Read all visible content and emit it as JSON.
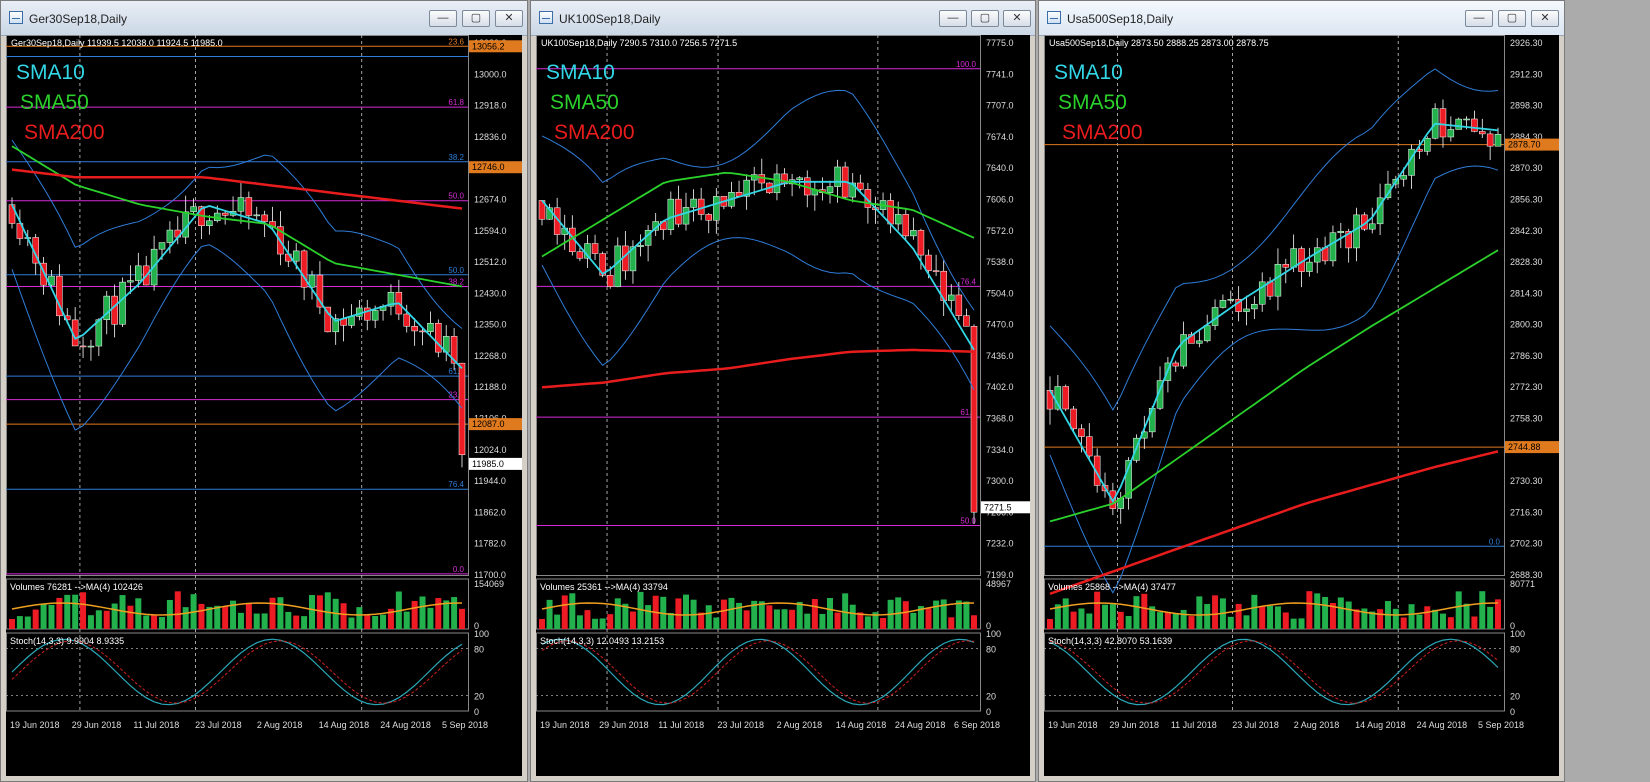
{
  "windows": [
    {
      "title": "Ger30Sep18,Daily",
      "info": "Ger30Sep18,Daily  11939.5 12038.0 11924.5 11985.0",
      "sma_labels": [
        "SMA10",
        "SMA50",
        "SMA200"
      ],
      "price_axis": [
        "13080.0",
        "13000.0",
        "12918.0",
        "12836.0",
        "12754.0",
        "12674.0",
        "12594.0",
        "12512.0",
        "12430.0",
        "12350.0",
        "12268.0",
        "12188.0",
        "12106.0",
        "12024.0",
        "11944.0",
        "11862.0",
        "11782.0",
        "11700.0"
      ],
      "tags": [
        {
          "text": "13056.2",
          "price": 13056.2,
          "color": "#e07a1f"
        },
        {
          "text": "12746.0",
          "price": 12746.0,
          "color": "#e07a1f"
        },
        {
          "text": "12087.0",
          "price": 12087.0,
          "color": "#e07a1f"
        },
        {
          "text": "11985.0",
          "price": 11985.0,
          "color": "#ffffff"
        }
      ],
      "fib_labels": [
        "23.6",
        "61.8",
        "38.2",
        "50.0",
        "50.0",
        "38.2",
        "61.8",
        "23.6",
        "76.4",
        "0.0"
      ],
      "volume_label": "Volumes 76281 -->MA(4) 102426",
      "volume_axis": [
        "154069",
        "0"
      ],
      "stoch_label": "Stoch(14,3,3) 9.9904 8.9335",
      "stoch_axis": [
        "100",
        "80",
        "20",
        "0"
      ],
      "dates": [
        "19 Jun 2018",
        "29 Jun 2018",
        "11 Jul 2018",
        "23 Jul 2018",
        "2 Aug 2018",
        "14 Aug 2018",
        "24 Aug 2018",
        "5 Sep 2018"
      ]
    },
    {
      "title": "UK100Sep18,Daily",
      "info": "UK100Sep18,Daily  7290.5 7310.0 7256.5 7271.5",
      "sma_labels": [
        "SMA10",
        "SMA50",
        "SMA200"
      ],
      "price_axis": [
        "7775.0",
        "7741.0",
        "7707.0",
        "7674.0",
        "7640.0",
        "7606.0",
        "7572.0",
        "7538.0",
        "7504.0",
        "7470.0",
        "7436.0",
        "7402.0",
        "7368.0",
        "7334.0",
        "7300.0",
        "7266.0",
        "7232.0",
        "7199.0"
      ],
      "tags": [
        {
          "text": "7271.5",
          "price": 7271.5,
          "color": "#ffffff"
        }
      ],
      "fib_labels": [
        "100.0",
        "76.4",
        "61.8",
        "50.0"
      ],
      "volume_label": "Volumes 25361 -->MA(4) 33794",
      "volume_axis": [
        "48967",
        "0"
      ],
      "stoch_label": "Stoch(14,3,3) 12.0493 13.2153",
      "stoch_axis": [
        "100",
        "80",
        "20",
        "0"
      ],
      "dates": [
        "19 Jun 2018",
        "29 Jun 2018",
        "11 Jul 2018",
        "23 Jul 2018",
        "2 Aug 2018",
        "14 Aug 2018",
        "24 Aug 2018",
        "6 Sep 2018"
      ]
    },
    {
      "title": "Usa500Sep18,Daily",
      "info": "Usa500Sep18,Daily  2873.50 2888.25 2873.00 2878.75",
      "sma_labels": [
        "SMA10",
        "SMA50",
        "SMA200"
      ],
      "price_axis": [
        "2926.30",
        "2912.30",
        "2898.30",
        "2884.30",
        "2870.30",
        "2856.30",
        "2842.30",
        "2828.30",
        "2814.30",
        "2800.30",
        "2786.30",
        "2772.30",
        "2758.30",
        "2744.30",
        "2730.30",
        "2716.30",
        "2702.30",
        "2688.30"
      ],
      "tags": [
        {
          "text": "2878.70",
          "price": 2878.7,
          "color": "#e07a1f"
        },
        {
          "text": "2744.88",
          "price": 2744.88,
          "color": "#e07a1f"
        }
      ],
      "fib_labels": [
        "0.0"
      ],
      "volume_label": "Volumes 25868 -->MA(4) 37477",
      "volume_axis": [
        "80771",
        "0"
      ],
      "stoch_label": "Stoch(14,3,3) 42.8070 53.1639",
      "stoch_axis": [
        "100",
        "80",
        "20",
        "0"
      ],
      "dates": [
        "19 Jun 2018",
        "29 Jun 2018",
        "11 Jul 2018",
        "23 Jul 2018",
        "2 Aug 2018",
        "14 Aug 2018",
        "24 Aug 2018",
        "5 Sep 2018"
      ]
    }
  ],
  "window_buttons": {
    "minimize": "—",
    "maximize": "▢",
    "close": "✕"
  },
  "colors": {
    "bull": "#22b14c",
    "bear": "#ed1c24",
    "sma10": "#33d6e6",
    "sma50": "#2bd12b",
    "sma200": "#e81c1c",
    "bollinger": "#2f7dd9",
    "fib": "#d62bd6",
    "level_orange": "#e07a1f",
    "vol_ma": "#f0a020",
    "stoch_main": "#2aa8b8",
    "stoch_signal": "#d02020"
  },
  "chart_data": [
    {
      "type": "line",
      "title": "Ger30Sep18,Daily",
      "ylim": [
        11700,
        13080
      ],
      "x": [
        "19 Jun 2018",
        "29 Jun 2018",
        "11 Jul 2018",
        "23 Jul 2018",
        "2 Aug 2018",
        "14 Aug 2018",
        "24 Aug 2018",
        "5 Sep 2018"
      ],
      "series": [
        {
          "name": "SMA10",
          "values": [
            12650,
            12300,
            12450,
            12650,
            12600,
            12350,
            12400,
            12230
          ]
        },
        {
          "name": "SMA50",
          "values": [
            12800,
            12700,
            12650,
            12620,
            12600,
            12500,
            12470,
            12440
          ]
        },
        {
          "name": "SMA200",
          "values": [
            12740,
            12720,
            12720,
            12720,
            12700,
            12680,
            12660,
            12640
          ]
        }
      ],
      "last_close": 11985.0
    },
    {
      "type": "line",
      "title": "UK100Sep18,Daily",
      "ylim": [
        7199,
        7775
      ],
      "x": [
        "19 Jun 2018",
        "29 Jun 2018",
        "11 Jul 2018",
        "23 Jul 2018",
        "2 Aug 2018",
        "14 Aug 2018",
        "24 Aug 2018",
        "6 Sep 2018"
      ],
      "series": [
        {
          "name": "SMA10",
          "values": [
            7600,
            7520,
            7580,
            7600,
            7620,
            7620,
            7550,
            7440
          ]
        },
        {
          "name": "SMA50",
          "values": [
            7540,
            7580,
            7620,
            7630,
            7620,
            7600,
            7590,
            7560
          ]
        },
        {
          "name": "SMA200",
          "values": [
            7400,
            7405,
            7415,
            7420,
            7430,
            7438,
            7440,
            7438
          ]
        }
      ],
      "last_close": 7271.5
    },
    {
      "type": "line",
      "title": "Usa500Sep18,Daily",
      "ylim": [
        2688.3,
        2926.3
      ],
      "x": [
        "19 Jun 2018",
        "29 Jun 2018",
        "11 Jul 2018",
        "23 Jul 2018",
        "2 Aug 2018",
        "14 Aug 2018",
        "24 Aug 2018",
        "5 Sep 2018"
      ],
      "series": [
        {
          "name": "SMA10",
          "values": [
            2770,
            2720,
            2790,
            2810,
            2828,
            2845,
            2888,
            2885
          ]
        },
        {
          "name": "SMA50",
          "values": [
            2712,
            2720,
            2740,
            2760,
            2780,
            2798,
            2815,
            2832
          ]
        },
        {
          "name": "SMA200",
          "values": [
            2680,
            2690,
            2700,
            2710,
            2720,
            2728,
            2736,
            2743
          ]
        }
      ],
      "last_close": 2878.75
    }
  ]
}
